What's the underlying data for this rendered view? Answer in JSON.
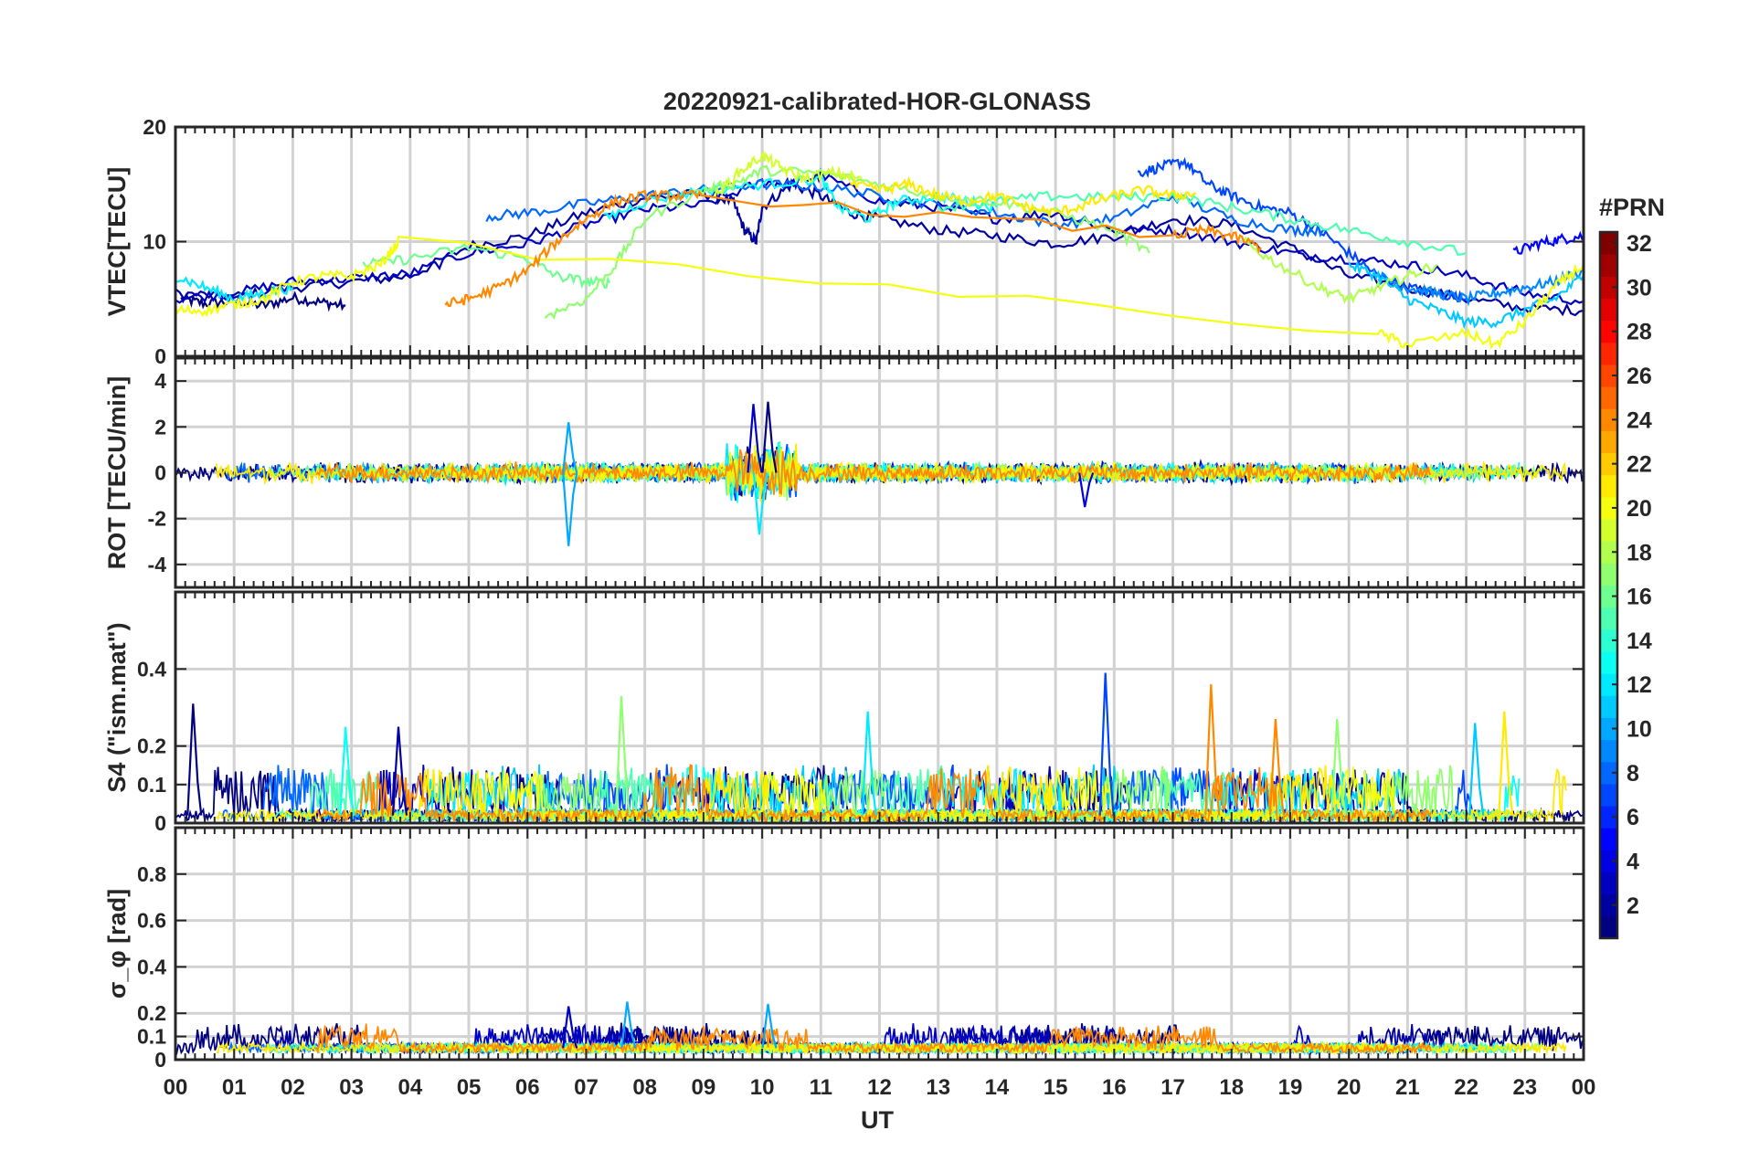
{
  "chart_data": {
    "type": "line",
    "title": "20220921-calibrated-HOR-GLONASS",
    "xlabel": "UT",
    "x_tick_labels": [
      "00",
      "01",
      "02",
      "03",
      "04",
      "05",
      "06",
      "07",
      "08",
      "09",
      "10",
      "11",
      "12",
      "13",
      "14",
      "15",
      "16",
      "17",
      "18",
      "19",
      "20",
      "21",
      "22",
      "23",
      "00"
    ],
    "xlim_hours": [
      0,
      24
    ],
    "grid": true,
    "panels": [
      {
        "ylabel": "VTEC[TECU]",
        "ylim": [
          0,
          20
        ],
        "yticks": [
          0,
          10,
          20
        ],
        "ytick_labels": [
          "0",
          "10",
          "20"
        ],
        "series": [
          {
            "prn": 1,
            "x": [
              0.1,
              0.5,
              1,
              1.5,
              2,
              2.5,
              2.9
            ],
            "y": [
              5,
              4.6,
              4.8,
              4.4,
              5.1,
              4.7,
              4.4
            ]
          },
          {
            "prn": 2,
            "x": [
              0,
              1,
              2,
              3,
              4,
              5,
              6,
              7,
              8,
              9,
              9.5,
              9.7,
              9.9,
              10,
              10.5,
              11,
              11.5,
              12,
              13,
              14,
              15,
              16,
              17,
              18,
              19,
              20,
              21,
              22,
              23,
              24
            ],
            "y": [
              5.5,
              5.2,
              6,
              6.5,
              7,
              9.6,
              10.5,
              12.5,
              13.8,
              14.2,
              13.5,
              11,
              10,
              13,
              15,
              14,
              12.5,
              12,
              11,
              10.5,
              9.8,
              10.5,
              12,
              11.5,
              9.5,
              7,
              6,
              5,
              4.2,
              4
            ]
          },
          {
            "prn": 3,
            "x": [
              0,
              1,
              2,
              3,
              4,
              5,
              6,
              7,
              8,
              9,
              10,
              10.5,
              11,
              12,
              13,
              14,
              15,
              16,
              17,
              18,
              19,
              20,
              21,
              22,
              23,
              24
            ],
            "y": [
              5,
              5.5,
              6.5,
              6.8,
              7.2,
              9,
              9.8,
              11.5,
              12.8,
              13.2,
              15.2,
              15,
              15.8,
              13.5,
              13,
              12,
              12.5,
              11,
              11,
              10,
              9,
              8.5,
              8,
              7,
              5.5,
              4.8
            ]
          },
          {
            "prn": 5,
            "x": [
              22.8,
              23.2,
              23.6,
              24
            ],
            "y": [
              9,
              9.8,
              10.2,
              10.5
            ]
          },
          {
            "prn": 7,
            "x": [
              16.4,
              16.8,
              17.2,
              17.6,
              18,
              18.5,
              19,
              19.5,
              20,
              20.5,
              21,
              21.5,
              22
            ],
            "y": [
              16,
              16.5,
              17,
              15,
              14,
              13,
              12.5,
              11,
              9,
              7,
              6,
              5.5,
              5
            ]
          },
          {
            "prn": 8,
            "x": [
              5.3,
              6,
              7,
              8,
              9,
              10,
              11,
              12,
              13,
              14,
              15,
              16,
              17,
              18,
              19,
              19.6
            ],
            "y": [
              12.2,
              12.5,
              13.3,
              14,
              14.5,
              15,
              14.8,
              14,
              13.2,
              12.5,
              11.5,
              12,
              14,
              12,
              11,
              11
            ]
          },
          {
            "prn": 9,
            "x": [
              20.5,
              21,
              21.5,
              22,
              22.5,
              23,
              23.5,
              24
            ],
            "y": [
              7,
              6,
              5.5,
              5,
              5.5,
              6,
              6.5,
              7.5
            ]
          },
          {
            "prn": 11,
            "x": [
              20,
              20.5,
              21,
              21.5,
              22,
              22.5,
              23,
              23.5,
              24
            ],
            "y": [
              8,
              7,
              5,
              4,
              3,
              3,
              4,
              5,
              7
            ]
          },
          {
            "prn": 12,
            "x": [
              0,
              0.5,
              1,
              1.5,
              2
            ],
            "y": [
              7,
              6,
              5,
              5.5,
              6
            ]
          },
          {
            "prn": 13,
            "x": [
              7.3,
              8,
              9,
              10,
              11,
              11.3,
              11.8,
              12.3,
              13,
              13.5,
              14
            ],
            "y": [
              12,
              13.5,
              14.5,
              15,
              15.5,
              13,
              12,
              13.5,
              14,
              13.5,
              13
            ]
          },
          {
            "prn": 15,
            "x": [
              13,
              14,
              15,
              16,
              17,
              18,
              19,
              20,
              21,
              22
            ],
            "y": [
              13,
              13.5,
              14,
              13.8,
              14,
              13,
              12,
              11,
              10,
              9
            ]
          },
          {
            "prn": 16,
            "x": [
              3.2,
              4,
              5,
              6,
              6.5,
              7,
              7.4
            ],
            "y": [
              8,
              8.5,
              9.5,
              8.5,
              7,
              6.5,
              6.4
            ]
          },
          {
            "prn": 17,
            "x": [
              6.3,
              7,
              7.5,
              8,
              9,
              9.5,
              10,
              11,
              12,
              13,
              14,
              15,
              16,
              16.6
            ],
            "y": [
              3.5,
              5,
              8,
              12,
              14.5,
              15,
              16.2,
              16,
              15,
              14,
              13.5,
              12.5,
              11,
              9
            ]
          },
          {
            "prn": 18,
            "x": [
              18.2,
              18.8,
              19.5,
              20,
              20.5,
              21,
              21.5
            ],
            "y": [
              10,
              8,
              6,
              5,
              6,
              7,
              8
            ]
          },
          {
            "prn": 19,
            "x": [
              9.2,
              9.6,
              10,
              10.3,
              10.7,
              11.2,
              11.7
            ],
            "y": [
              14,
              16,
              17.5,
              16.5,
              15.5,
              16,
              15.5
            ]
          },
          {
            "prn": 20,
            "x": [
              0,
              0.5,
              1,
              1.5,
              2,
              2.5,
              3,
              3.5,
              3.8,
              20.5,
              21,
              22,
              22.5,
              23,
              23.5,
              24
            ],
            "y": [
              4,
              4,
              4.5,
              5,
              6.5,
              7,
              7,
              8,
              10,
              2,
              1,
              2,
              1,
              3,
              6,
              8
            ]
          },
          {
            "prn": 21,
            "x": [
              11.5,
              12,
              12.5,
              13,
              13.5,
              14,
              14.5,
              15,
              15.5,
              16,
              16.5,
              17,
              17.4
            ],
            "y": [
              15,
              14.5,
              15,
              14,
              13.5,
              14,
              13,
              12.5,
              13.2,
              14,
              14.5,
              14,
              14.2
            ]
          },
          {
            "prn": 24,
            "x": [
              4.6,
              5,
              5.5,
              6,
              6.5,
              7,
              7.5,
              8,
              8.5,
              9,
              17,
              17.5,
              18,
              18.5
            ],
            "y": [
              4.5,
              5,
              6,
              7.5,
              10,
              12,
              13.5,
              14,
              14,
              14,
              10.5,
              11,
              10.5,
              9.5
            ]
          }
        ]
      },
      {
        "ylabel": "ROT [TECU/min]",
        "ylim": [
          -5,
          5
        ],
        "yticks": [
          -4,
          -2,
          0,
          2,
          4
        ],
        "ytick_labels": [
          "-4",
          "-2",
          "0",
          "2",
          "4"
        ],
        "noise_model": "high-rate fluctuations around 0 (typ. amplitude 0.2-0.6 TECU/min), strongest near 09:30-10:30 UT",
        "notable_peaks": [
          {
            "x": 6.7,
            "y": 2.2
          },
          {
            "x": 6.7,
            "y": -3.2
          },
          {
            "x": 9.85,
            "y": 3.0
          },
          {
            "x": 10.1,
            "y": 3.1
          },
          {
            "x": 9.95,
            "y": -2.7
          },
          {
            "x": 15.5,
            "y": -1.5
          }
        ]
      },
      {
        "ylabel": "S4 (\"ism.mat\")",
        "ylim": [
          0,
          0.6
        ],
        "yticks": [
          0,
          0.1,
          0.2,
          0.4
        ],
        "ytick_labels": [
          "0",
          "0.1",
          "0.2",
          "0.4"
        ],
        "notable_peaks": [
          {
            "prn": 1,
            "x": 0.3,
            "y": 0.31
          },
          {
            "prn": 2,
            "x": 3.8,
            "y": 0.25
          },
          {
            "prn": 13,
            "x": 2.9,
            "y": 0.25
          },
          {
            "prn": 17,
            "x": 7.6,
            "y": 0.33
          },
          {
            "prn": 12,
            "x": 11.8,
            "y": 0.29
          },
          {
            "prn": 7,
            "x": 15.85,
            "y": 0.39
          },
          {
            "prn": 24,
            "x": 17.65,
            "y": 0.36
          },
          {
            "prn": 24,
            "x": 18.75,
            "y": 0.27
          },
          {
            "prn": 17,
            "x": 19.8,
            "y": 0.27
          },
          {
            "prn": 11,
            "x": 22.15,
            "y": 0.26
          },
          {
            "prn": 21,
            "x": 22.65,
            "y": 0.29
          }
        ]
      },
      {
        "ylabel": "σ_φ [rad]",
        "ylim": [
          0,
          1
        ],
        "yticks": [
          0,
          0.1,
          0.2,
          0.4,
          0.6,
          0.8
        ],
        "ytick_labels": [
          "0",
          "0.1",
          "0.2",
          "0.4",
          "0.6",
          "0.8"
        ],
        "noise_model": "baseline ~0.03-0.08 rad with bursts up to ~0.25 rad (PRN 1-3 and 24)",
        "notable_peaks": [
          {
            "x": 7.7,
            "y": 0.25
          },
          {
            "x": 10.1,
            "y": 0.24
          },
          {
            "x": 6.7,
            "y": 0.23
          }
        ]
      }
    ],
    "colorbar": {
      "label": "#PRN",
      "colormap": "jet",
      "range": [
        1,
        32
      ],
      "ticks": [
        2,
        4,
        6,
        8,
        10,
        12,
        14,
        16,
        18,
        20,
        22,
        24,
        26,
        28,
        30,
        32
      ],
      "tick_labels": [
        "2",
        "4",
        "6",
        "8",
        "10",
        "12",
        "14",
        "16",
        "18",
        "20",
        "22",
        "24",
        "26",
        "28",
        "30",
        "32"
      ]
    }
  }
}
